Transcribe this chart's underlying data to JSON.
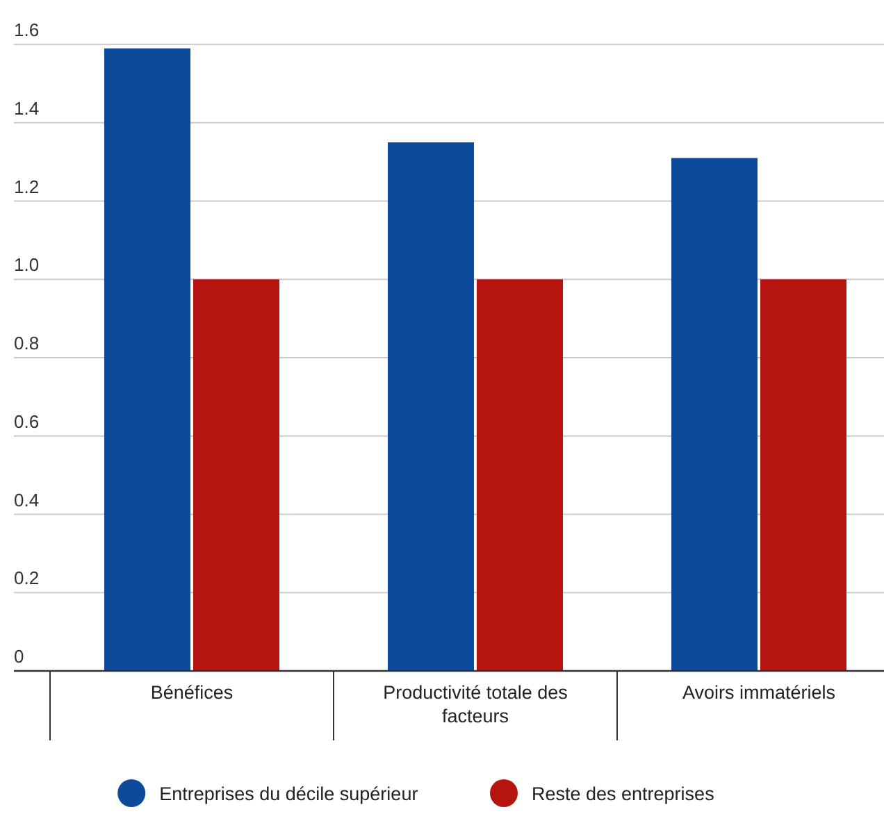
{
  "chart_data": {
    "type": "bar",
    "categories": [
      "Bénéfices",
      "Productivité totale des facteurs",
      "Avoirs immatériels"
    ],
    "series": [
      {
        "name": "Entreprises du décile supérieur",
        "color": "#0d4a9c",
        "values": [
          1.59,
          1.35,
          1.31
        ]
      },
      {
        "name": "Reste des entreprises",
        "color": "#b5140f",
        "values": [
          1.0,
          1.0,
          1.0
        ]
      }
    ],
    "ylim": [
      0,
      1.6
    ],
    "yticks": [
      0,
      {
        "value": 0.2,
        "label": "0.2"
      },
      {
        "value": 0.4,
        "label": "0.4"
      },
      {
        "value": 0.6,
        "label": "0.6"
      },
      {
        "value": 0.8,
        "label": "0.8"
      },
      {
        "value": 1.0,
        "label": "1.0"
      },
      {
        "value": 1.2,
        "label": "1.2"
      },
      {
        "value": 1.4,
        "label": "1.4"
      },
      {
        "value": 1.6,
        "label": "1.6"
      }
    ],
    "grid": "y",
    "legend": "bottom"
  }
}
